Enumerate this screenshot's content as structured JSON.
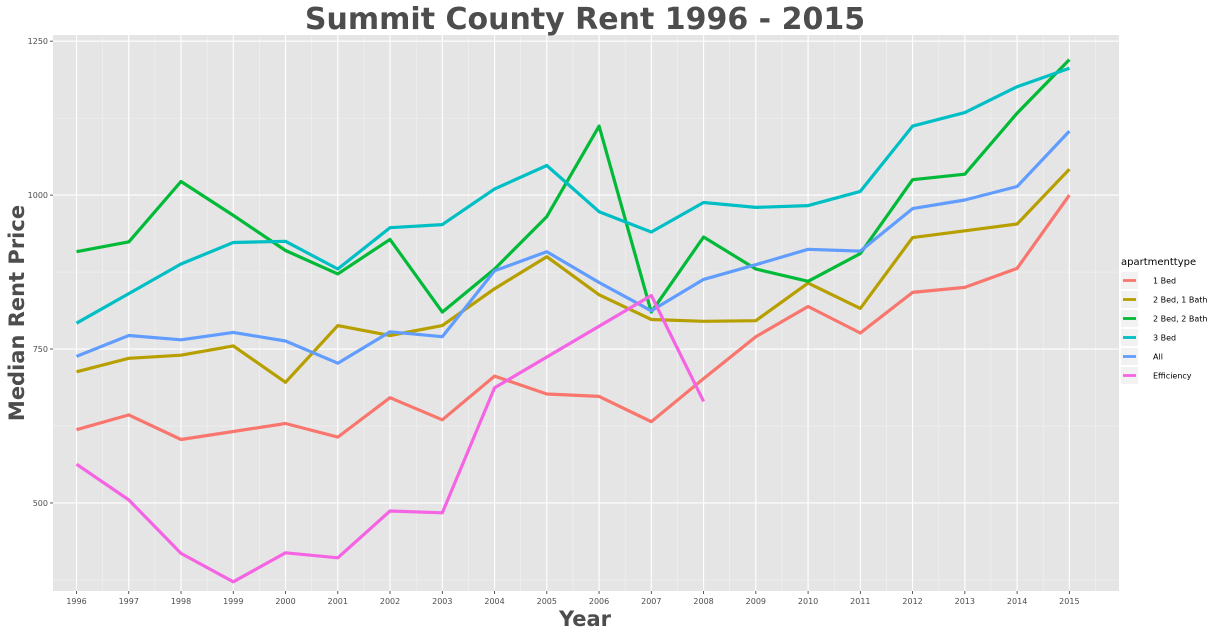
{
  "chart_data": {
    "type": "line",
    "title": "Summit County Rent 1996 - 2015",
    "xlabel": "Year",
    "ylabel": "Median Rent Price",
    "x": [
      1996,
      1997,
      1998,
      1999,
      2000,
      2001,
      2002,
      2003,
      2004,
      2005,
      2006,
      2007,
      2008,
      2009,
      2010,
      2011,
      2012,
      2013,
      2014,
      2015
    ],
    "x_tick_labels": [
      "1996",
      "1997",
      "1998",
      "1999",
      "2000",
      "2001",
      "2002",
      "2003",
      "2004",
      "2005",
      "2006",
      "2007",
      "2008",
      "2009",
      "2010",
      "2011",
      "2012",
      "2013",
      "2014",
      "2015"
    ],
    "xlim": [
      1995.55,
      2015.95
    ],
    "ylim": [
      357,
      1260
    ],
    "y_ticks": [
      500,
      750,
      1000,
      1250
    ],
    "y_tick_labels": [
      "500",
      "750",
      "1000",
      "1250"
    ],
    "grid": true,
    "legend": {
      "title": "apartmenttype",
      "position": "right"
    },
    "series": [
      {
        "name": "1 Bed",
        "color": "#F8766D",
        "values": [
          619,
          643,
          603,
          616,
          629,
          607,
          671,
          635,
          706,
          677,
          673,
          632,
          702,
          770,
          819,
          776,
          842,
          850,
          881,
          1000
        ]
      },
      {
        "name": "2 Bed, 1 Bath",
        "color": "#B79F00",
        "values": [
          713,
          735,
          740,
          755,
          696,
          788,
          772,
          788,
          848,
          900,
          838,
          798,
          795,
          796,
          857,
          816,
          931,
          942,
          953,
          1042
        ]
      },
      {
        "name": "2 Bed, 2 Bath",
        "color": "#00BA38",
        "values": [
          908,
          924,
          1022,
          967,
          910,
          872,
          928,
          810,
          880,
          965,
          1112,
          810,
          932,
          880,
          860,
          905,
          1025,
          1034,
          1133,
          1220
        ]
      },
      {
        "name": "3 Bed",
        "color": "#00BFC4",
        "values": [
          792,
          840,
          888,
          923,
          925,
          880,
          947,
          952,
          1010,
          1048,
          973,
          940,
          988,
          980,
          983,
          1006,
          1112,
          1134,
          1176,
          1206
        ]
      },
      {
        "name": "All",
        "color": "#619CFF",
        "values": [
          738,
          772,
          765,
          777,
          763,
          727,
          778,
          770,
          877,
          908,
          858,
          812,
          863,
          887,
          912,
          909,
          978,
          992,
          1014,
          1104
        ]
      },
      {
        "name": "Efficiency",
        "color": "#F564E3",
        "values": [
          563,
          505,
          418,
          372,
          419,
          411,
          487,
          484,
          687,
          null,
          null,
          837,
          665,
          null,
          null,
          null,
          null,
          null,
          null,
          null
        ]
      }
    ]
  }
}
